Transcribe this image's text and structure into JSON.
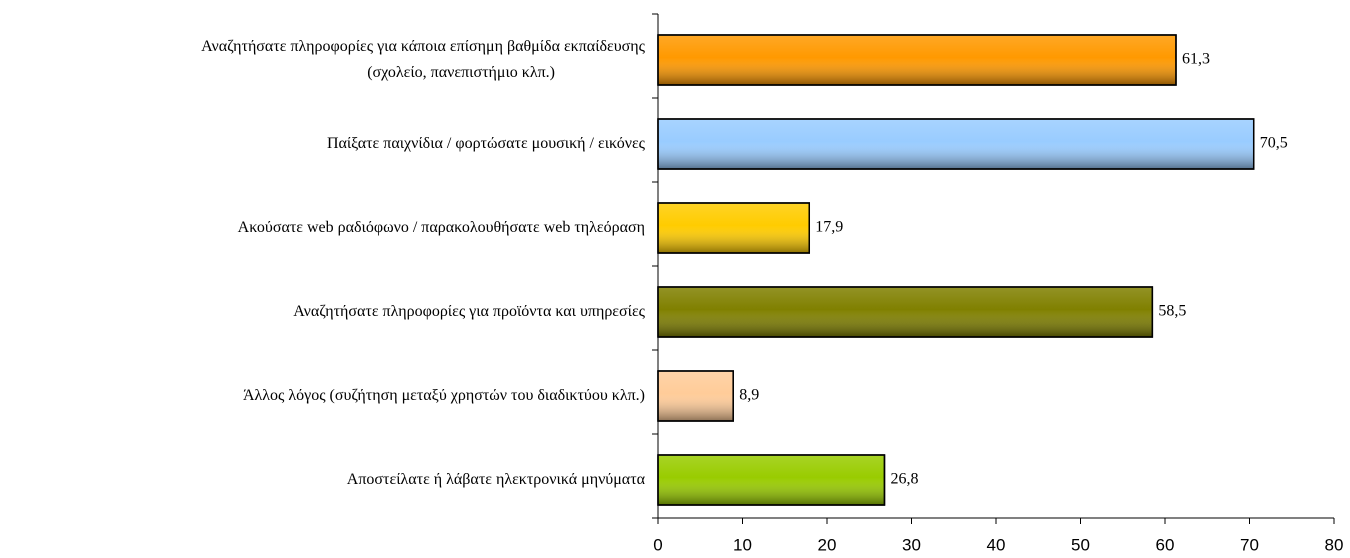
{
  "chart_data": {
    "type": "bar",
    "orientation": "horizontal",
    "categories": [
      "Αναζητήσατε πληροφορίες για κάποια επίσημη βαθμίδα εκπαίδευσης\n(σχολείο, πανεπιστήμιο  κλπ.)",
      "Παίξατε παιχνίδια / φορτώσατε μουσική / εικόνες",
      "Ακούσατε web ραδιόφωνο /  παρακολουθήσατε web τηλεόραση",
      "Αναζητήσατε πληροφορίες για προϊόντα και υπηρεσίες",
      "Άλλος λόγος (συζήτηση μεταξύ χρηστών του διαδικτύου κλπ.)",
      "Αποστείλατε ή λάβατε ηλεκτρονικά μηνύματα"
    ],
    "values": [
      61.3,
      70.5,
      17.9,
      58.5,
      8.9,
      26.8
    ],
    "value_labels": [
      "61,3",
      "70,5",
      "17,9",
      "58,5",
      "8,9",
      "26,8"
    ],
    "colors": [
      "#ff9900",
      "#99ccff",
      "#ffcc00",
      "#808000",
      "#ffcc99",
      "#99cc00"
    ],
    "xlim": [
      0,
      80
    ],
    "xticks": [
      0,
      10,
      20,
      30,
      40,
      50,
      60,
      70,
      80
    ],
    "grid": false
  }
}
